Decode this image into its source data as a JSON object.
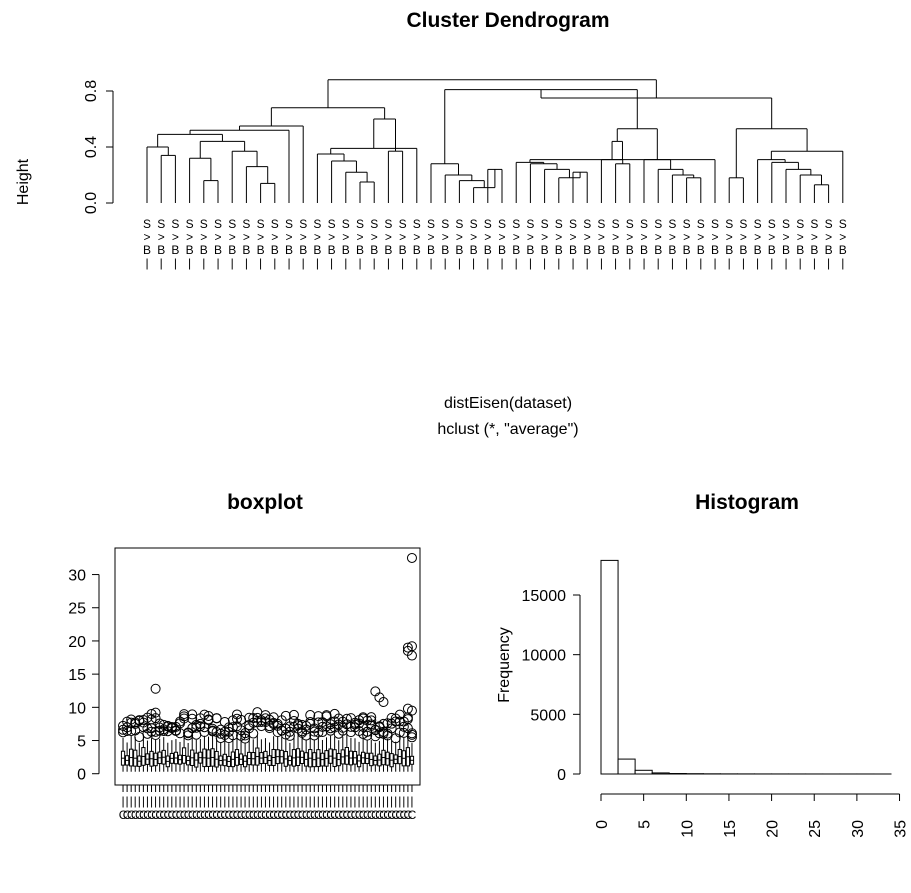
{
  "chart_data": [
    {
      "type": "dendrogram",
      "title": "Cluster Dendrogram",
      "ylabel": "Height",
      "xlabel": "distEisen(dataset)",
      "sublabel": "hclust (*, \"average\")",
      "ylim": [
        0,
        0.9
      ],
      "yticks": [
        0.0,
        0.4,
        0.8
      ],
      "merge_heights_top": [
        0.88,
        0.81,
        0.75,
        0.55,
        0.53,
        0.44
      ]
    },
    {
      "type": "box",
      "title": "boxplot",
      "ylim": [
        0,
        32.6
      ],
      "yticks": [
        0,
        5,
        10,
        15,
        20,
        25,
        30
      ],
      "num_boxes": 72,
      "notable_outliers": [
        32.5,
        19.2,
        19.0,
        18.5,
        17.8,
        12.8,
        12.4,
        11.5,
        10.8,
        9.8,
        9.5,
        9.2,
        9.0,
        8.5,
        8.0,
        7.2
      ]
    },
    {
      "type": "bar",
      "title": "Histogram",
      "ylabel": "Frequency",
      "xticks": [
        0,
        5,
        10,
        15,
        20,
        25,
        30,
        35
      ],
      "yticks": [
        0,
        5000,
        10000,
        15000
      ],
      "bin_width": 2,
      "bin_start": 0,
      "values": [
        17900,
        1250,
        310,
        90,
        40,
        25,
        15,
        10,
        8,
        6,
        5,
        4,
        3,
        2,
        2,
        2,
        1
      ]
    }
  ]
}
